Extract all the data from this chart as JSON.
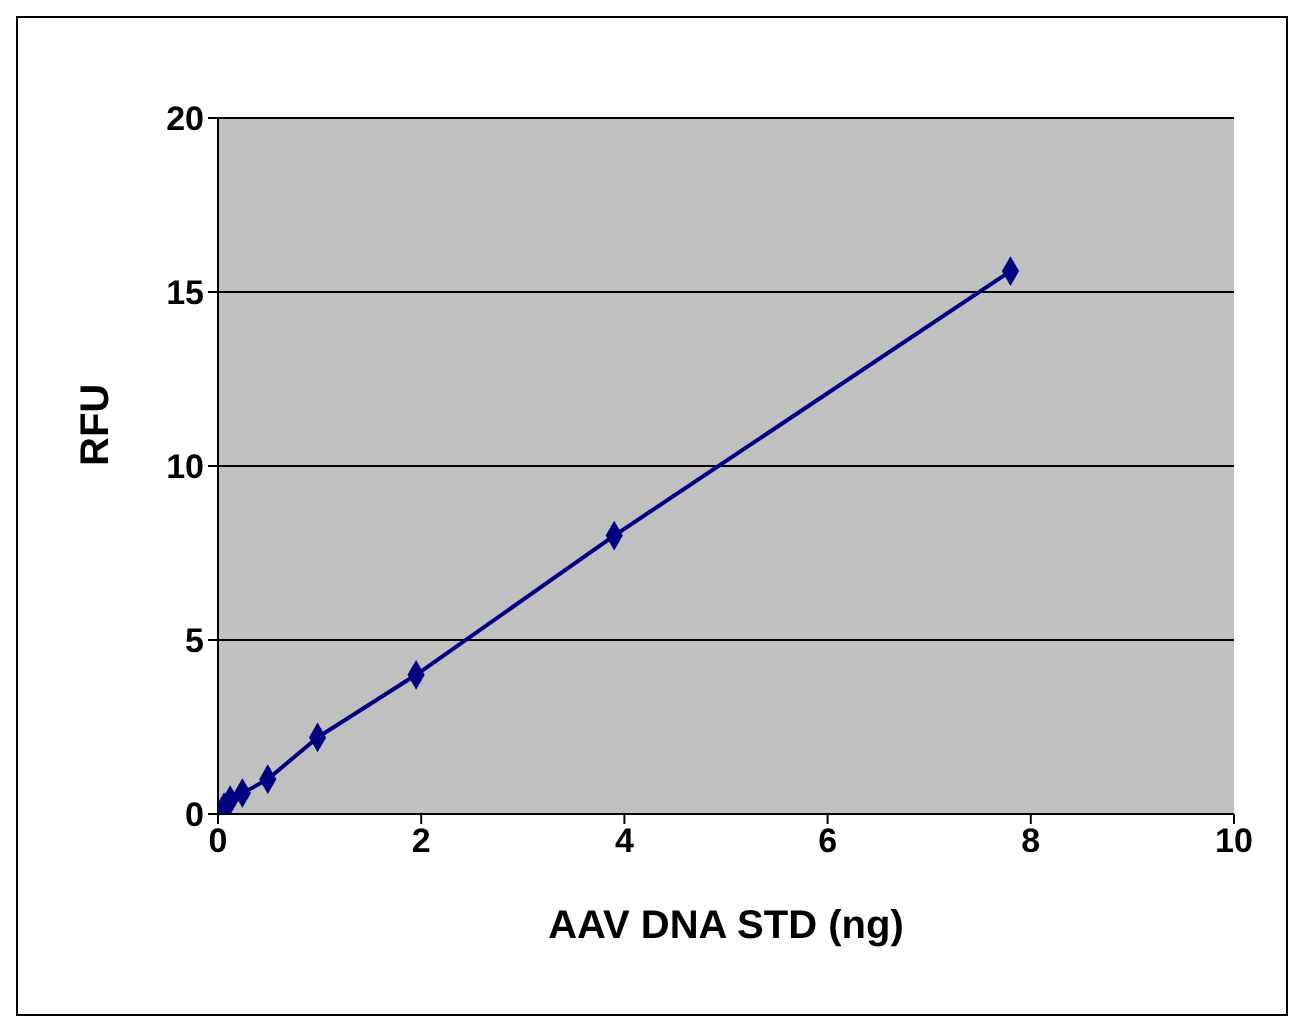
{
  "chart_data": {
    "type": "line",
    "xlabel": "AAV DNA STD (ng)",
    "ylabel": "RFU",
    "x": [
      0,
      0.06,
      0.12,
      0.24,
      0.49,
      0.98,
      1.95,
      3.9,
      7.8
    ],
    "series": [
      {
        "color": "#000080",
        "values": [
          0,
          0.2,
          0.4,
          0.6,
          1.0,
          2.2,
          4.0,
          8.0,
          15.6
        ]
      }
    ],
    "xlim": [
      0,
      10
    ],
    "xticks": [
      0,
      2,
      4,
      6,
      8,
      10
    ],
    "ylim": [
      0,
      20
    ],
    "yticks": [
      0,
      5,
      10,
      15,
      20
    ],
    "grid": "y",
    "marker": "diamond",
    "line_style": "solid",
    "legend": false
  }
}
